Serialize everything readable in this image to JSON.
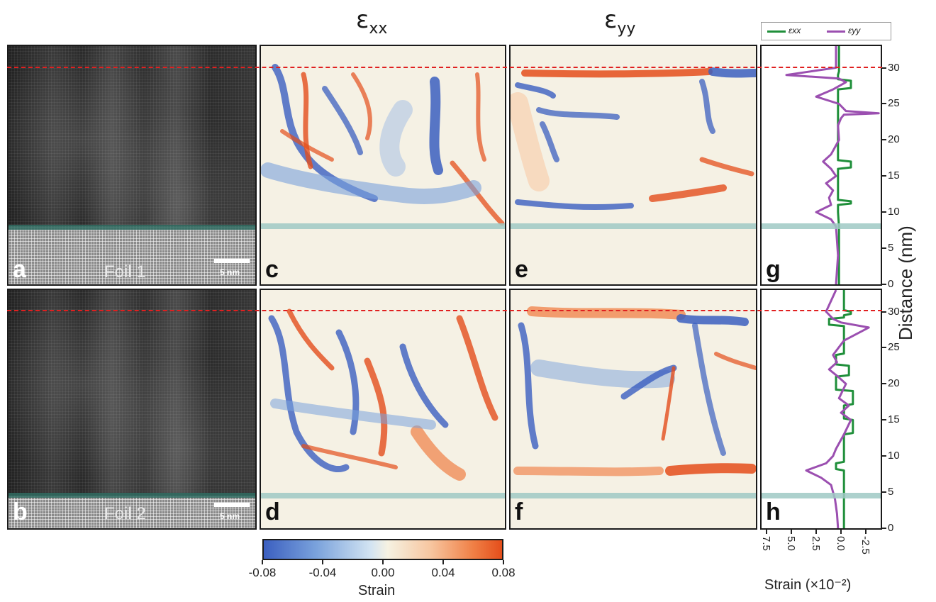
{
  "headers": {
    "exx_main": "ε",
    "exx_sub": "xx",
    "eyy_main": "ε",
    "eyy_sub": "yy"
  },
  "panels": {
    "a": {
      "letter": "a",
      "label": "Foil 1",
      "scale": "5 nm"
    },
    "b": {
      "letter": "b",
      "label": "Foil 2",
      "scale": "5 nm"
    },
    "c": {
      "letter": "c"
    },
    "d": {
      "letter": "d"
    },
    "e": {
      "letter": "e"
    },
    "f": {
      "letter": "f"
    },
    "g": {
      "letter": "g"
    },
    "h": {
      "letter": "h"
    }
  },
  "colorbar": {
    "ticks": [
      "-0.08",
      "-0.04",
      "0.00",
      "0.04",
      "0.08"
    ],
    "label": "Strain",
    "colors": [
      "#3b5fc0",
      "#f6f2e2",
      "#e44e1b"
    ]
  },
  "profile": {
    "legend": [
      {
        "name": "εxx",
        "color": "#1f8f3a"
      },
      {
        "name": "εyy",
        "color": "#9b4fb0"
      }
    ],
    "y_ticks": [
      "0",
      "5",
      "10",
      "15",
      "20",
      "25",
      "30"
    ],
    "x_ticks": [
      "7.5",
      "5.0",
      "2.5",
      "0.0",
      "-2.5"
    ],
    "y_label": "Distance (nm)",
    "x_label": "Strain (×10⁻²)"
  },
  "chart_data": [
    {
      "type": "line",
      "panel": "g",
      "xlabel": "Strain (×10⁻²)",
      "ylabel": "Distance (nm)",
      "xlim": [
        8.0,
        -4.0
      ],
      "ylim": [
        0,
        33
      ],
      "series": [
        {
          "name": "εxx",
          "color": "#1f8f3a",
          "x": [
            0.2,
            0.2,
            0.2,
            0.2,
            0.3,
            0.3,
            -1,
            -1,
            0.3,
            0.3,
            -1,
            -1,
            0.3,
            0.3,
            0.3,
            -1,
            -1,
            0.3,
            0.3,
            0.2,
            0.2,
            0.2,
            0.2,
            0.2,
            0.2,
            0.2,
            0.2
          ],
          "y": [
            0,
            2,
            5,
            8,
            10,
            11,
            11.2,
            11.5,
            11.7,
            16,
            16.2,
            17,
            17.2,
            22,
            27,
            27.2,
            28.2,
            28.4,
            29,
            29.5,
            30,
            30.5,
            31,
            31.5,
            32,
            32.5,
            33
          ]
        },
        {
          "name": "εyy",
          "color": "#9b4fb0",
          "x": [
            0.5,
            0.4,
            0.3,
            0.4,
            0.5,
            1.0,
            2.5,
            1.0,
            1.2,
            0.8,
            1.5,
            0.5,
            1.0,
            1.8,
            1.0,
            0.2,
            0.3,
            0.0,
            -0.3,
            -3.8,
            -0.5,
            0.2,
            2.5,
            0.8,
            -0.5,
            0.2,
            5.5,
            0.5,
            0.5
          ],
          "y": [
            0,
            2,
            4,
            6,
            8,
            9,
            10,
            11,
            12,
            13,
            14,
            15,
            16,
            17,
            18,
            20,
            22,
            23,
            23.5,
            23.7,
            24,
            25,
            26,
            27,
            28,
            28.5,
            29,
            30,
            33
          ]
        }
      ]
    },
    {
      "type": "line",
      "panel": "h",
      "xlabel": "Strain (×10⁻²)",
      "ylabel": "Distance (nm)",
      "xlim": [
        8.0,
        -4.0
      ],
      "ylim": [
        0,
        33
      ],
      "series": [
        {
          "name": "εxx",
          "color": "#1f8f3a",
          "x": [
            -0.3,
            -0.3,
            -0.3,
            -0.3,
            0.5,
            0.5,
            -0.3,
            -0.3,
            -1.2,
            -1.2,
            -0.3,
            -0.3,
            -1.2,
            -1.2,
            0.5,
            0.5,
            -0.8,
            -0.8,
            0.5,
            0.5,
            -0.3,
            -0.3,
            1.2,
            1.2,
            -0.3,
            -0.3,
            -1.0,
            -1.0,
            -0.3,
            -0.3
          ],
          "y": [
            0,
            3,
            5,
            8,
            8.2,
            9,
            9.2,
            13,
            13.2,
            15,
            15.2,
            17,
            17.2,
            19,
            19.2,
            21,
            21.2,
            22.5,
            22.7,
            24,
            24.2,
            28,
            28.2,
            29,
            29.2,
            29.5,
            29.7,
            30,
            30.2,
            33
          ]
        },
        {
          "name": "εyy",
          "color": "#9b4fb0",
          "x": [
            0.3,
            0.4,
            0.6,
            1.0,
            2.0,
            3.5,
            1.5,
            0.8,
            0.5,
            -0.3,
            -1.0,
            0.0,
            -0.8,
            0.2,
            -0.5,
            0.3,
            1.2,
            0.4,
            0.8,
            -0.3,
            -2.8,
            0.0,
            0.8,
            1.5,
            0.5
          ],
          "y": [
            0,
            2,
            4,
            6,
            7,
            8,
            9,
            10,
            11,
            13,
            15,
            16,
            17,
            18,
            20,
            21,
            22,
            23,
            24,
            26,
            27.8,
            28.5,
            29,
            30,
            33
          ]
        }
      ]
    }
  ]
}
